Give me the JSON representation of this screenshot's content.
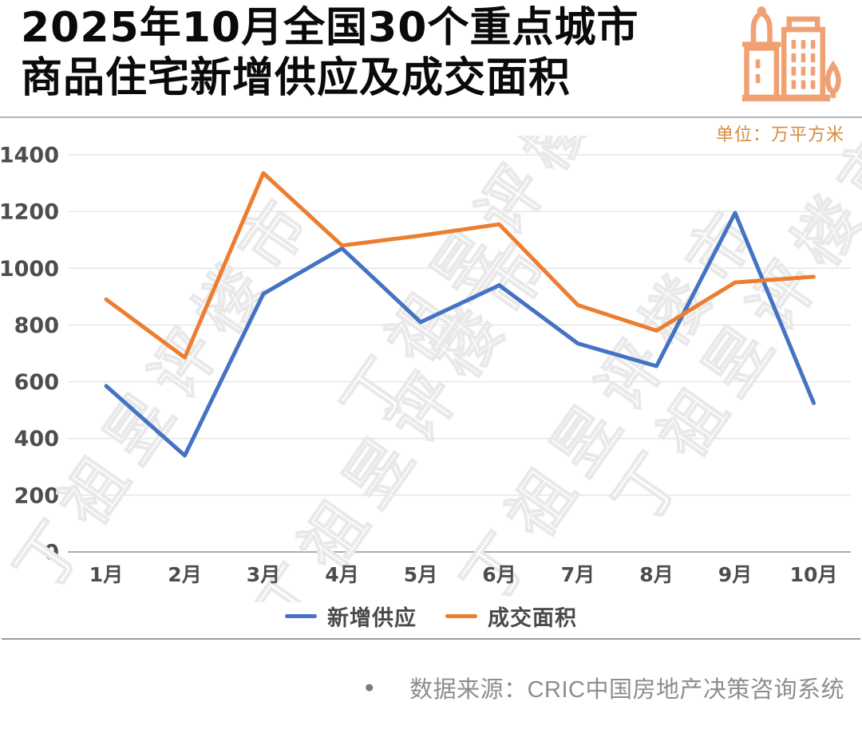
{
  "header": {
    "title_line1": "2025年10月全国30个重点城市",
    "title_line2": "商品住宅新增供应及成交面积",
    "unit_label": "单位：万平方米"
  },
  "chart_data": {
    "type": "line",
    "title": "2025年10月全国30个重点城市商品住宅新增供应及成交面积",
    "unit": "万平方米",
    "categories": [
      "1月",
      "2月",
      "3月",
      "4月",
      "5月",
      "6月",
      "7月",
      "8月",
      "9月",
      "10月"
    ],
    "series": [
      {
        "name": "新增供应",
        "color": "#4472C4",
        "values": [
          585,
          340,
          910,
          1070,
          810,
          940,
          735,
          655,
          1195,
          525
        ]
      },
      {
        "name": "成交面积",
        "color": "#ED7D31",
        "values": [
          890,
          685,
          1335,
          1080,
          1115,
          1155,
          870,
          780,
          950,
          970
        ]
      }
    ],
    "ylim": [
      0,
      1400
    ],
    "ytick_step": 200,
    "grid": true,
    "legend_position": "bottom"
  },
  "footer": {
    "bullet": "●",
    "source_text": "数据来源：CRIC中国房地产决策咨询系统"
  },
  "watermark": {
    "text": "丁祖昱评楼市"
  },
  "colors": {
    "supply_line": "#4472C4",
    "transaction_line": "#ED7D31",
    "icon_orange": "#F0A173",
    "unit_text": "#D9893F",
    "gridline": "#E5E5E5",
    "axis_baseline": "#ADADAD",
    "tick_text": "#4D4D4D",
    "legend_text": "#4A4A4A",
    "source_text": "#8D8D8D",
    "watermark_stroke": "#E9E9E9"
  }
}
